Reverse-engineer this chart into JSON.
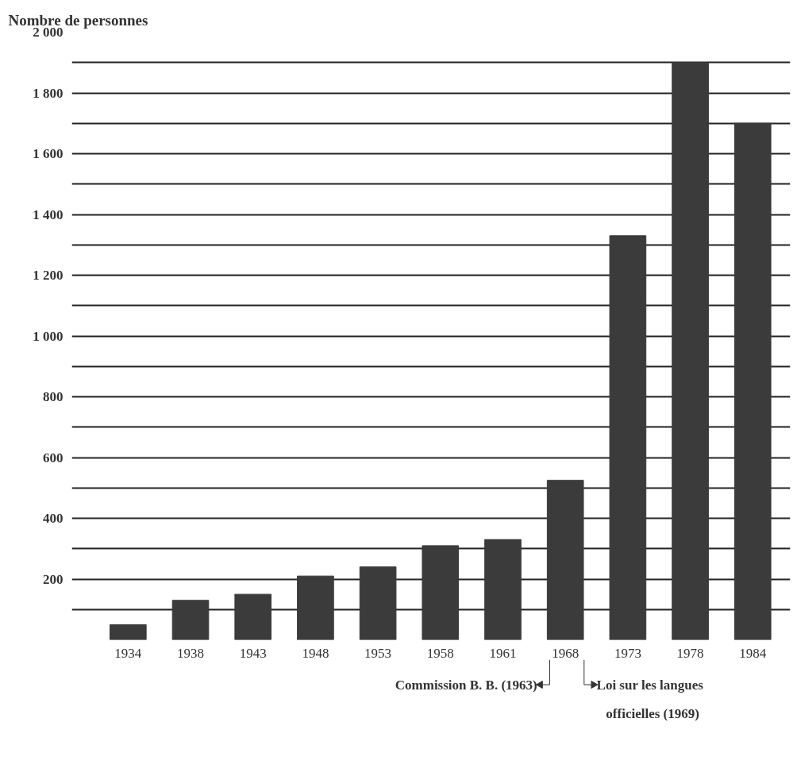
{
  "chart_data": {
    "type": "bar",
    "ylabel": "Nombre de personnes",
    "categories": [
      "1934",
      "1938",
      "1943",
      "1948",
      "1953",
      "1958",
      "1961",
      "1968",
      "1973",
      "1978",
      "1984"
    ],
    "values": [
      50,
      130,
      150,
      210,
      240,
      310,
      330,
      525,
      1330,
      1900,
      1700
    ],
    "color": "#3b3b3b",
    "ylim": [
      0,
      2000
    ],
    "yticks": [
      {
        "value": 100,
        "label": null
      },
      200,
      {
        "value": 300,
        "label": null
      },
      400,
      {
        "value": 500,
        "label": null
      },
      600,
      {
        "value": 700,
        "label": null
      },
      800,
      {
        "value": 900,
        "label": null
      },
      {
        "value": 1000,
        "label": "1 000"
      },
      {
        "value": 1100,
        "label": null
      },
      {
        "value": 1200,
        "label": "1 200"
      },
      {
        "value": 1300,
        "label": null
      },
      {
        "value": 1400,
        "label": "1 400"
      },
      {
        "value": 1500,
        "label": null
      },
      {
        "value": 1600,
        "label": "1 600"
      },
      {
        "value": 1700,
        "label": null
      },
      {
        "value": 1800,
        "label": "1 800"
      },
      {
        "value": 1900,
        "label": null
      },
      {
        "value": 2000,
        "label": "2 000"
      }
    ],
    "grid": "y",
    "annotations": [
      "Commission B. B. (1963)",
      "Loi sur les langues officielles (1969)"
    ]
  }
}
